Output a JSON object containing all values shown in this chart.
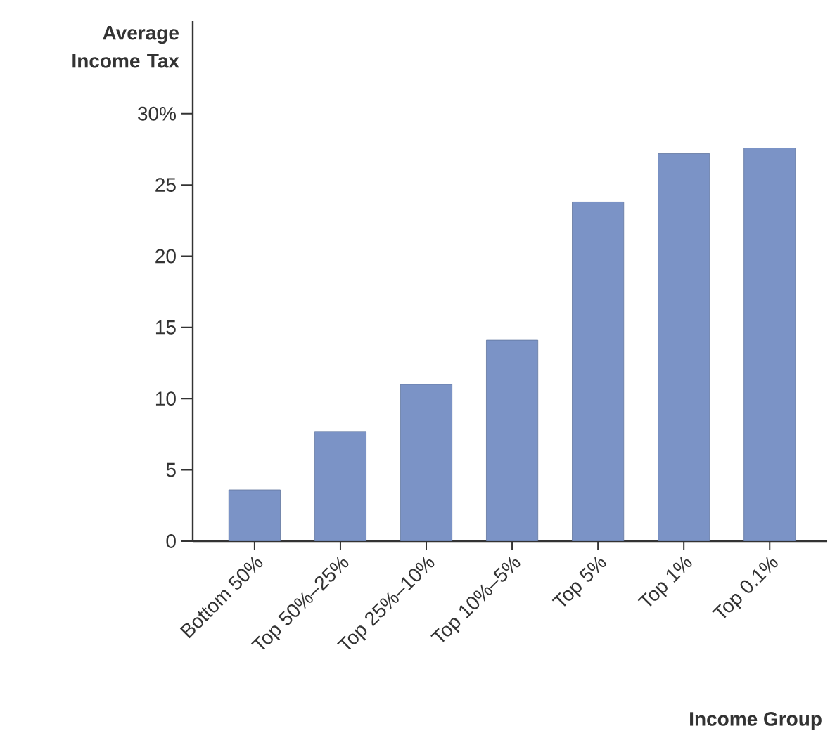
{
  "chart_data": {
    "type": "bar",
    "xlabel": "Income Group",
    "ylabel": "Average Income Tax",
    "categories": [
      "Bottom 50%",
      "Top 50%–25%",
      "Top 25%–10%",
      "Top 10%–5%",
      "Top 5%",
      "Top 1%",
      "Top 0.1%"
    ],
    "values": [
      3.6,
      7.7,
      11.0,
      14.1,
      23.8,
      27.2,
      27.6
    ],
    "color": "#7b93c6",
    "ylim": [
      0,
      36.5
    ],
    "yticks": [
      0,
      5,
      10,
      15,
      20,
      25,
      {
        "value": 30,
        "label": "30%"
      }
    ],
    "grid": false
  }
}
